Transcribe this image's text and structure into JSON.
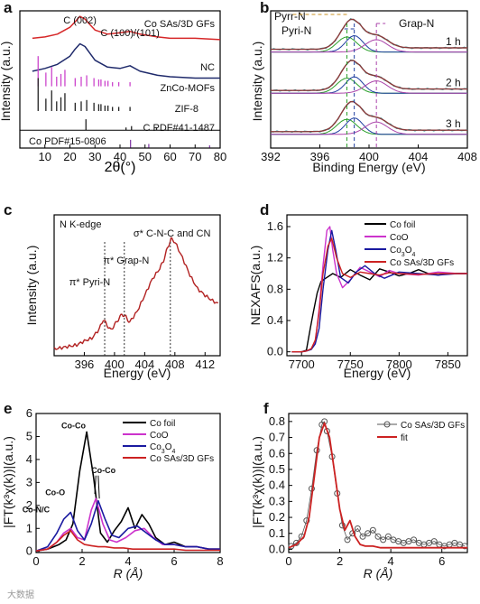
{
  "watermark": "大数据",
  "chart_data": [
    {
      "panel": "a",
      "type": "line",
      "xlabel": "2θ(°)",
      "ylabel": "Intensity (a.u.)",
      "xlim": [
        0,
        80
      ],
      "xticks": [
        10,
        20,
        30,
        40,
        50,
        60,
        70,
        80
      ],
      "grid": false,
      "series": [
        {
          "name": "Co SAs/3D GFs",
          "color": "#d62728",
          "x": [
            5,
            10,
            15,
            20,
            22,
            24,
            26,
            28,
            30,
            35,
            40,
            44,
            48,
            55,
            60,
            70,
            80
          ],
          "y": [
            0.8,
            0.81,
            0.83,
            0.88,
            0.92,
            0.96,
            0.94,
            0.9,
            0.86,
            0.83,
            0.84,
            0.85,
            0.83,
            0.81,
            0.8,
            0.8,
            0.79
          ]
        },
        {
          "name": "NC",
          "color": "#1f2a6b",
          "x": [
            5,
            10,
            15,
            20,
            22,
            24,
            26,
            28,
            30,
            35,
            40,
            44,
            48,
            55,
            60,
            70,
            80
          ],
          "y": [
            0.56,
            0.58,
            0.61,
            0.67,
            0.72,
            0.76,
            0.74,
            0.69,
            0.64,
            0.59,
            0.58,
            0.6,
            0.56,
            0.53,
            0.52,
            0.51,
            0.51
          ]
        },
        {
          "name": "ZnCo-MOFs",
          "color": "#cc44cc",
          "type": "sticks",
          "x": [
            7.3,
            10.4,
            12.7,
            14.7,
            16.4,
            18.0,
            22.1,
            24.5,
            26.7,
            29.6,
            31.5,
            32.4,
            34.0,
            35.2,
            37.0,
            39.5,
            44.0
          ],
          "y": [
            0.22,
            0.1,
            0.14,
            0.07,
            0.09,
            0.12,
            0.06,
            0.07,
            0.08,
            0.06,
            0.05,
            0.05,
            0.04,
            0.04,
            0.03,
            0.03,
            0.03
          ],
          "base": 0.45
        },
        {
          "name": "ZIF-8",
          "color": "#222222",
          "type": "sticks",
          "x": [
            7.3,
            10.4,
            12.7,
            14.7,
            16.4,
            18.0,
            22.1,
            24.5,
            26.7,
            29.6,
            31.5,
            32.4,
            34.0,
            35.2,
            37.0,
            39.5,
            44.0
          ],
          "y": [
            0.24,
            0.09,
            0.15,
            0.07,
            0.1,
            0.13,
            0.06,
            0.07,
            0.08,
            0.06,
            0.05,
            0.05,
            0.04,
            0.04,
            0.03,
            0.03,
            0.03
          ],
          "base": 0.27
        },
        {
          "name": "C PDF#41-1487",
          "color": "#222222",
          "type": "sticks",
          "x": [
            26.4,
            42.4,
            44.6,
            54.6
          ],
          "y": [
            0.08,
            0.02,
            0.03,
            0.02
          ],
          "base": 0.13
        },
        {
          "name": "Co PDF#15-0806",
          "color": "#8844aa",
          "type": "sticks",
          "x": [
            44.2,
            51.5,
            75.8
          ],
          "y": [
            0.06,
            0.03,
            0.02
          ],
          "base": 0.0
        }
      ],
      "annotations": [
        "C (002)",
        "C (100)/(101)"
      ]
    },
    {
      "panel": "b",
      "type": "line",
      "xlabel": "Binding Energy (eV)",
      "ylabel": "Intensity (a.u.)",
      "xlim": [
        392,
        408
      ],
      "xticks": [
        392,
        396,
        400,
        404,
        408
      ],
      "legend": [
        "Pyrr-N",
        "Pyri-N",
        "Grap-N"
      ],
      "annotations": [
        "1 h",
        "2 h",
        "3 h"
      ],
      "reference_lines_eV": [
        398.2,
        398.8,
        400.6
      ]
    },
    {
      "panel": "c",
      "type": "line",
      "title": "N K-edge",
      "xlabel": "Energy (eV)",
      "ylabel": "Intensity (a.u.)",
      "xlim": [
        392,
        414
      ],
      "xticks": [
        396,
        400,
        404,
        408,
        412
      ],
      "series": [
        {
          "name": "",
          "color": "#b22222",
          "x": [
            392,
            393,
            394,
            395,
            396,
            397,
            398,
            398.5,
            399,
            399.5,
            400,
            400.5,
            401,
            401.5,
            402,
            403,
            404,
            405,
            406,
            406.5,
            407,
            407.5,
            408,
            409,
            410,
            411,
            412,
            413,
            414
          ],
          "y": [
            0.0,
            0.01,
            0.02,
            0.03,
            0.06,
            0.08,
            0.15,
            0.22,
            0.18,
            0.14,
            0.18,
            0.22,
            0.26,
            0.24,
            0.2,
            0.28,
            0.4,
            0.52,
            0.6,
            0.66,
            0.75,
            0.82,
            0.8,
            0.68,
            0.55,
            0.45,
            0.4,
            0.36,
            0.33
          ]
        }
      ],
      "annotations": [
        "π* Pyri-N",
        "π* Grap-N",
        "σ* C-N-C and CN"
      ],
      "reference_lines_eV": [
        398.7,
        401.3,
        407.4
      ]
    },
    {
      "panel": "d",
      "type": "line",
      "xlabel": "Energy (eV)",
      "ylabel": "NEXAFS(a.u.)",
      "xlim": [
        7685,
        7870
      ],
      "ylim": [
        -0.05,
        1.75
      ],
      "xticks": [
        7700,
        7750,
        7800,
        7850
      ],
      "yticks": [
        0.0,
        0.4,
        0.8,
        1.2,
        1.6
      ],
      "legend": "top-right",
      "series": [
        {
          "name": "Co foil",
          "color": "#000000",
          "x": [
            7690,
            7700,
            7705,
            7709,
            7712,
            7716,
            7720,
            7726,
            7732,
            7740,
            7750,
            7760,
            7770,
            7780,
            7790,
            7800,
            7810,
            7820,
            7830,
            7840,
            7850,
            7860,
            7870
          ],
          "y": [
            0.0,
            0.0,
            0.02,
            0.3,
            0.5,
            0.75,
            0.9,
            0.95,
            1.0,
            0.95,
            1.05,
            0.98,
            0.92,
            1.06,
            1.02,
            0.97,
            1.0,
            1.05,
            1.0,
            0.98,
            1.0,
            1.0,
            1.0
          ]
        },
        {
          "name": "CoO",
          "color": "#cc33cc",
          "x": [
            7690,
            7700,
            7705,
            7710,
            7714,
            7718,
            7722,
            7726,
            7729,
            7732,
            7736,
            7742,
            7750,
            7760,
            7770,
            7780,
            7790,
            7800,
            7820,
            7840,
            7860,
            7870
          ],
          "y": [
            0.0,
            0.0,
            0.01,
            0.04,
            0.12,
            0.55,
            1.1,
            1.55,
            1.6,
            1.3,
            1.0,
            0.82,
            0.92,
            1.08,
            1.02,
            0.96,
            1.04,
            1.0,
            0.98,
            1.02,
            1.0,
            1.0
          ]
        },
        {
          "name": "Co3O4",
          "color": "#1a1aa0",
          "x": [
            7690,
            7700,
            7705,
            7710,
            7714,
            7718,
            7722,
            7727,
            7731,
            7735,
            7740,
            7748,
            7756,
            7765,
            7775,
            7785,
            7800,
            7820,
            7840,
            7860,
            7870
          ],
          "y": [
            0.0,
            0.0,
            0.01,
            0.03,
            0.1,
            0.3,
            0.8,
            1.3,
            1.55,
            1.3,
            0.95,
            0.88,
            1.02,
            1.1,
            1.0,
            0.94,
            1.02,
            1.0,
            0.98,
            1.0,
            1.0
          ]
        },
        {
          "name": "Co SAs/3D GFs",
          "color": "#cc2222",
          "x": [
            7690,
            7700,
            7705,
            7710,
            7714,
            7718,
            7722,
            7727,
            7731,
            7736,
            7742,
            7750,
            7760,
            7770,
            7780,
            7790,
            7800,
            7820,
            7840,
            7860,
            7870
          ],
          "y": [
            0.0,
            0.0,
            0.01,
            0.04,
            0.15,
            0.5,
            1.0,
            1.35,
            1.45,
            1.2,
            1.0,
            0.95,
            1.02,
            1.0,
            0.98,
            1.01,
            1.0,
            0.99,
            1.0,
            1.0,
            1.0
          ]
        }
      ]
    },
    {
      "panel": "e",
      "type": "line",
      "xlabel": "R (Å)",
      "ylabel": "|FT(k³χ(k))|(a.u.)",
      "xlim": [
        0,
        8
      ],
      "ylim": [
        -0.05,
        6
      ],
      "xticks": [
        0,
        2,
        4,
        6,
        8
      ],
      "yticks": [
        0,
        1,
        2,
        3,
        4,
        5,
        6
      ],
      "legend": "top-right",
      "annotations": [
        "Co-Co",
        "Co-Co",
        "Co-O",
        "Co-N/C"
      ],
      "series": [
        {
          "name": "Co foil",
          "color": "#000000",
          "x": [
            0,
            0.5,
            1.0,
            1.3,
            1.6,
            1.9,
            2.2,
            2.5,
            2.8,
            3.1,
            3.4,
            3.7,
            4.0,
            4.3,
            4.6,
            4.9,
            5.2,
            5.6,
            6.0,
            6.5,
            7.0,
            7.5,
            8.0
          ],
          "y": [
            0.02,
            0.1,
            0.3,
            0.5,
            1.2,
            3.5,
            5.2,
            3.2,
            0.8,
            0.4,
            0.9,
            1.3,
            1.9,
            1.0,
            1.6,
            1.2,
            0.6,
            0.3,
            0.4,
            0.2,
            0.2,
            0.1,
            0.1
          ]
        },
        {
          "name": "CoO",
          "color": "#cc33cc",
          "x": [
            0,
            0.5,
            0.9,
            1.2,
            1.5,
            1.8,
            2.1,
            2.4,
            2.6,
            2.9,
            3.2,
            3.5,
            3.9,
            4.3,
            4.7,
            5.1,
            5.5,
            6.0,
            6.5,
            7.0,
            7.5,
            8.0
          ],
          "y": [
            0.02,
            0.1,
            0.4,
            0.8,
            1.0,
            0.6,
            0.5,
            1.8,
            2.3,
            1.2,
            0.5,
            0.4,
            0.6,
            0.9,
            1.0,
            0.6,
            0.3,
            0.3,
            0.2,
            0.2,
            0.1,
            0.1
          ]
        },
        {
          "name": "Co3O4",
          "color": "#1a1aa0",
          "x": [
            0,
            0.5,
            0.9,
            1.2,
            1.5,
            1.8,
            2.1,
            2.4,
            2.7,
            3.0,
            3.3,
            3.6,
            4.0,
            4.4,
            4.8,
            5.2,
            5.6,
            6.0,
            6.5,
            7.0,
            7.5,
            8.0
          ],
          "y": [
            0.02,
            0.2,
            0.8,
            1.4,
            1.7,
            0.9,
            0.5,
            1.2,
            2.2,
            1.4,
            0.7,
            0.6,
            1.0,
            1.1,
            0.8,
            0.5,
            0.3,
            0.3,
            0.2,
            0.2,
            0.1,
            0.1
          ]
        },
        {
          "name": "Co SAs/3D GFs",
          "color": "#cc2222",
          "x": [
            0,
            0.5,
            0.9,
            1.2,
            1.5,
            1.8,
            2.1,
            2.4,
            2.7,
            3.0,
            3.4,
            3.8,
            4.2,
            4.8,
            5.4,
            6.0,
            6.5,
            7.0,
            7.5,
            8.0
          ],
          "y": [
            0.02,
            0.1,
            0.4,
            0.7,
            0.9,
            0.5,
            0.3,
            0.25,
            0.2,
            0.2,
            0.15,
            0.15,
            0.1,
            0.1,
            0.1,
            0.1,
            0.05,
            0.05,
            0.05,
            0.05
          ]
        }
      ]
    },
    {
      "panel": "f",
      "type": "line",
      "xlabel": "R (Å)",
      "ylabel": "|FT(k³χ(k))|(a.u.)",
      "xlim": [
        0,
        7
      ],
      "ylim": [
        -0.02,
        0.85
      ],
      "xticks": [
        0,
        2,
        4,
        6
      ],
      "yticks": [
        0.0,
        0.1,
        0.2,
        0.3,
        0.4,
        0.5,
        0.6,
        0.7,
        0.8
      ],
      "legend": "top-right",
      "series": [
        {
          "name": "Co SAs/3D GFs",
          "color": "#555555",
          "marker": "circle-open",
          "x": [
            0.1,
            0.3,
            0.5,
            0.7,
            0.9,
            1.1,
            1.3,
            1.4,
            1.5,
            1.7,
            1.9,
            2.1,
            2.3,
            2.5,
            2.7,
            2.9,
            3.1,
            3.3,
            3.5,
            3.7,
            3.9,
            4.1,
            4.3,
            4.5,
            4.7,
            4.9,
            5.1,
            5.3,
            5.5,
            5.7,
            5.9,
            6.1,
            6.3,
            6.5,
            6.7,
            6.9
          ],
          "y": [
            0.02,
            0.04,
            0.08,
            0.18,
            0.38,
            0.62,
            0.78,
            0.8,
            0.74,
            0.58,
            0.35,
            0.15,
            0.06,
            0.1,
            0.13,
            0.08,
            0.1,
            0.12,
            0.08,
            0.06,
            0.08,
            0.06,
            0.05,
            0.04,
            0.05,
            0.06,
            0.04,
            0.03,
            0.04,
            0.05,
            0.03,
            0.02,
            0.03,
            0.04,
            0.03,
            0.02
          ]
        },
        {
          "name": "fit",
          "color": "#cc2222",
          "x": [
            0.0,
            0.3,
            0.6,
            0.8,
            1.0,
            1.2,
            1.4,
            1.6,
            1.8,
            2.0,
            2.2,
            2.4,
            2.6,
            2.8,
            3.0,
            3.3,
            3.6,
            4.0,
            4.5,
            5.0,
            5.5,
            6.0,
            6.5,
            7.0
          ],
          "y": [
            0.01,
            0.03,
            0.08,
            0.2,
            0.45,
            0.7,
            0.79,
            0.7,
            0.48,
            0.25,
            0.12,
            0.18,
            0.08,
            0.03,
            0.02,
            0.02,
            0.01,
            0.01,
            0.01,
            0.01,
            0.01,
            0.01,
            0.01,
            0.01
          ]
        }
      ]
    }
  ]
}
